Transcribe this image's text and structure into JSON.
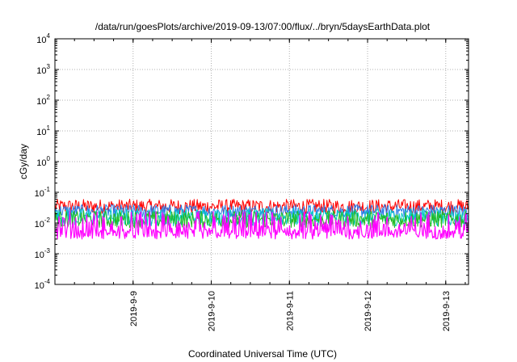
{
  "chart_data": {
    "type": "line",
    "title": "/data/run/goesPlots/archive/2019-09-13/07:00/flux/../bryn/5daysEarthData.plot",
    "xlabel": "Coordinated Universal Time (UTC)",
    "ylabel": "cGy/day",
    "y_scale": "log",
    "ylim": [
      0.0001,
      10000
    ],
    "x_range": [
      "2019-09-08 00:00",
      "2019-09-13 07:00"
    ],
    "y_ticks": [
      {
        "base": "10",
        "exp": "-4",
        "value": 0.0001
      },
      {
        "base": "10",
        "exp": "-3",
        "value": 0.001
      },
      {
        "base": "10",
        "exp": "-2",
        "value": 0.01
      },
      {
        "base": "10",
        "exp": "-1",
        "value": 0.1
      },
      {
        "base": "10",
        "exp": "0",
        "value": 1
      },
      {
        "base": "10",
        "exp": "1",
        "value": 10
      },
      {
        "base": "10",
        "exp": "2",
        "value": 100
      },
      {
        "base": "10",
        "exp": "3",
        "value": 1000
      },
      {
        "base": "10",
        "exp": "4",
        "value": 10000
      }
    ],
    "x_ticks": [
      {
        "label": "2019-9-9",
        "value": "2019-09-09"
      },
      {
        "label": "2019-9-10",
        "value": "2019-09-10"
      },
      {
        "label": "2019-9-11",
        "value": "2019-09-11"
      },
      {
        "label": "2019-9-12",
        "value": "2019-09-12"
      },
      {
        "label": "2019-9-13",
        "value": "2019-09-13"
      }
    ],
    "grid": true,
    "legend": "none",
    "series": [
      {
        "color": "#ff0000",
        "typical_range": [
          0.02,
          0.06
        ]
      },
      {
        "color": "#2a7de8",
        "typical_range": [
          0.015,
          0.04
        ]
      },
      {
        "color": "#00c8c8",
        "typical_range": [
          0.008,
          0.03
        ]
      },
      {
        "color": "#22bb22",
        "typical_range": [
          0.007,
          0.025
        ]
      },
      {
        "color": "#ff00ff",
        "typical_range": [
          0.003,
          0.025
        ]
      }
    ]
  }
}
